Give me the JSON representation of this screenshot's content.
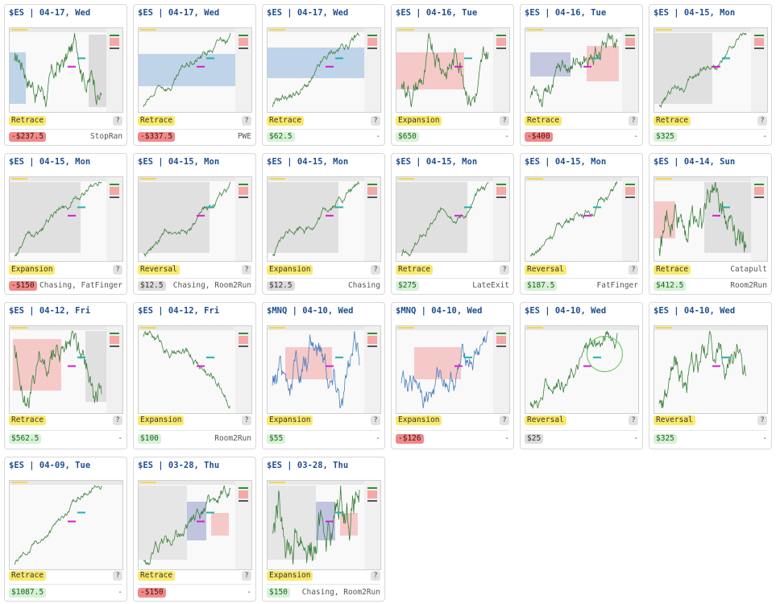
{
  "cards": [
    {
      "title": "$ES | 04-17, Wed",
      "tag": "Retrace",
      "pnl": "-$237.5",
      "note": "StopRan"
    },
    {
      "title": "$ES | 04-17, Wed",
      "tag": "Retrace",
      "pnl": "-$337.5",
      "note": "PWE"
    },
    {
      "title": "$ES | 04-17, Wed",
      "tag": "Retrace",
      "pnl": "$62.5",
      "note": "-"
    },
    {
      "title": "$ES | 04-16, Tue",
      "tag": "Expansion",
      "pnl": "$650",
      "note": "-"
    },
    {
      "title": "$ES | 04-16, Tue",
      "tag": "Retrace",
      "pnl": "-$400",
      "note": "-"
    },
    {
      "title": "$ES | 04-15, Mon",
      "tag": "Retrace",
      "pnl": "$325",
      "note": "-"
    },
    {
      "title": "$ES | 04-15, Mon",
      "tag": "Expansion",
      "pnl": "-$150",
      "note": "Chasing, FatFinger"
    },
    {
      "title": "$ES | 04-15, Mon",
      "tag": "Reversal",
      "pnl": "$12.5",
      "note": "Chasing, Room2Run"
    },
    {
      "title": "$ES | 04-15, Mon",
      "tag": "Expansion",
      "pnl": "$12.5",
      "note": "Chasing"
    },
    {
      "title": "$ES | 04-15, Mon",
      "tag": "Retrace",
      "pnl": "$275",
      "note": "LateExit"
    },
    {
      "title": "$ES | 04-15, Mon",
      "tag": "Reversal",
      "pnl": "$187.5",
      "note": "FatFinger"
    },
    {
      "title": "$ES | 04-14, Sun",
      "tag": "Retrace",
      "pnl": "$412.5",
      "note": "Room2Run",
      "tag_note": "Catapult"
    },
    {
      "title": "$ES | 04-12, Fri",
      "tag": "Retrace",
      "pnl": "$562.5",
      "note": "-"
    },
    {
      "title": "$ES | 04-12, Fri",
      "tag": "Expansion",
      "pnl": "$100",
      "note": "Room2Run"
    },
    {
      "title": "$MNQ | 04-10, Wed",
      "tag": "Expansion",
      "pnl": "$55",
      "note": "-"
    },
    {
      "title": "$MNQ | 04-10, Wed",
      "tag": "Expansion",
      "pnl": "-$126",
      "note": "-"
    },
    {
      "title": "$ES | 04-10, Wed",
      "tag": "Reversal",
      "pnl": "$25",
      "note": "-"
    },
    {
      "title": "$ES | 04-10, Wed",
      "tag": "Reversal",
      "pnl": "$325",
      "note": "-"
    },
    {
      "title": "$ES | 04-09, Tue",
      "tag": "Retrace",
      "pnl": "$1087.5",
      "note": "-"
    },
    {
      "title": "$ES | 03-28, Thu",
      "tag": "Retrace",
      "pnl": "-$150",
      "note": "-"
    },
    {
      "title": "$ES | 03-28, Thu",
      "tag": "Expansion",
      "pnl": "$150",
      "note": "Chasing, Room2Run"
    }
  ],
  "help_label": "?",
  "colors": {
    "title": "#1f4f8f",
    "tag": "#fbe96b",
    "positive": "#d6f2d6",
    "negative": "#f08a8a",
    "neutral": "#dcdcdc"
  }
}
